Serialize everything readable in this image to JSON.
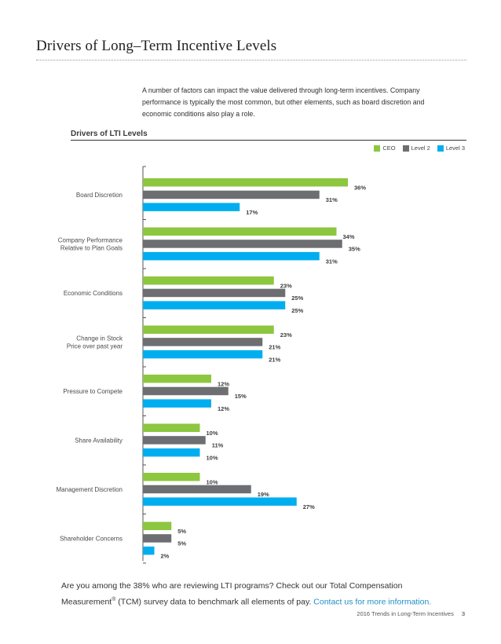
{
  "page": {
    "title": "Drivers of Long–Term Incentive Levels",
    "intro": "A number of factors can impact the value delivered through long-term incentives. Company performance is typically the most common, but other elements, such as board discretion and economic conditions also play a role.",
    "footer_text_1": "Are you among the 38% who are reviewing LTI programs? Check out our Total Compensation Measurement",
    "footer_sup": "®",
    "footer_text_2": " (TCM) survey data to benchmark all elements of pay. ",
    "footer_link": "Contact us for more information.",
    "footer_doc": "2016 Trends in Long-Term Incentives",
    "page_number": "3"
  },
  "colors": {
    "ceo": "#8dc63f",
    "level2": "#6d6e71",
    "level3": "#00aeef"
  },
  "chart_data": {
    "type": "bar",
    "orientation": "horizontal",
    "title": "Drivers of LTI Levels",
    "xlim": [
      0,
      40
    ],
    "grid": false,
    "legend_position": "top-right",
    "categories": [
      [
        "Board Discretion"
      ],
      [
        "Company Performance",
        "Relative to Plan Goals"
      ],
      [
        "Economic Conditions"
      ],
      [
        "Change in Stock",
        "Price over past year"
      ],
      [
        "Pressure to Compete"
      ],
      [
        "Share Availability"
      ],
      [
        "Management Discretion"
      ],
      [
        "Shareholder Concerns"
      ]
    ],
    "series": [
      {
        "name": "CEO",
        "color": "#8dc63f",
        "values": [
          36,
          34,
          23,
          23,
          12,
          10,
          10,
          5
        ]
      },
      {
        "name": "Level 2",
        "color": "#6d6e71",
        "values": [
          31,
          35,
          25,
          21,
          15,
          11,
          19,
          5
        ]
      },
      {
        "name": "Level 3",
        "color": "#00aeef",
        "values": [
          17,
          31,
          25,
          21,
          12,
          10,
          27,
          2
        ]
      }
    ],
    "value_suffix": "%"
  }
}
